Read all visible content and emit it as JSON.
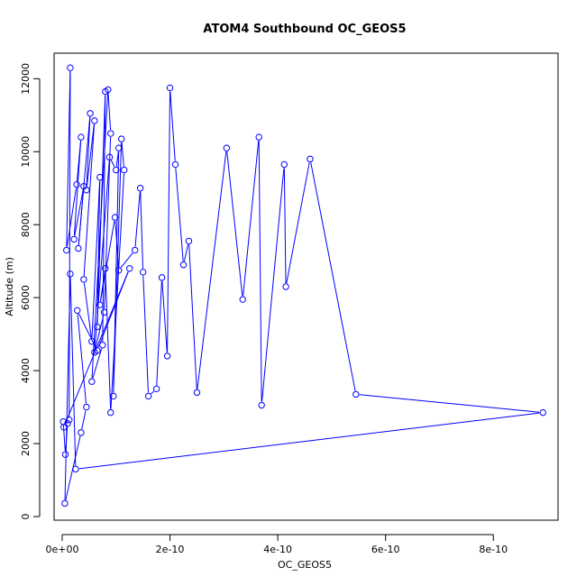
{
  "chart_data": {
    "type": "line",
    "title": "ATOM4 Southbound OC_GEOS5",
    "xlabel": "OC_GEOS5",
    "ylabel": "Altitude (m)",
    "xlim": [
      -1.5e-11,
      9.2e-10
    ],
    "ylim": [
      -100,
      12700
    ],
    "x_ticks": [
      0,
      2e-10,
      4e-10,
      6e-10,
      8e-10
    ],
    "x_tick_labels": [
      "0e+00",
      "2e-10",
      "4e-10",
      "6e-10",
      "8e-10"
    ],
    "y_ticks": [
      0,
      2000,
      4000,
      6000,
      8000,
      10000,
      12000
    ],
    "y_tick_labels": [
      "0",
      "2000",
      "4000",
      "6000",
      "8000",
      "10000",
      "12000"
    ],
    "grid": false,
    "markers": "open-circle",
    "color": "#0000ff",
    "series": [
      {
        "x": [
          2e-12,
          6e-12,
          1e-11,
          1.3e-11,
          1.5e-11,
          8e-12,
          2.7e-11,
          3.5e-11,
          2.2e-11,
          4e-11,
          3e-11,
          5.2e-11,
          4.5e-11,
          6e-11,
          4e-11,
          5.5e-11,
          7e-11,
          6.5e-11,
          8e-11,
          7.5e-11,
          5.5e-11,
          8.5e-11,
          9e-11,
          7.8e-11,
          6e-11,
          8.8e-11,
          1e-10,
          1.05e-10,
          9.5e-11,
          1.1e-10,
          1.15e-10,
          9e-11,
          8e-11,
          7e-11,
          9.8e-11,
          1.05e-10,
          1.35e-10,
          1.45e-10,
          1.5e-10,
          1.6e-10,
          1.75e-10,
          1.85e-10,
          1.95e-10,
          2e-10,
          2.1e-10,
          2.25e-10,
          2.35e-10,
          2.5e-10,
          3.05e-10,
          3.35e-10,
          3.65e-10,
          3.7e-10,
          4.12e-10,
          4.15e-10,
          4.6e-10,
          5.45e-10,
          8.92e-10,
          2.5e-11,
          1.5e-11,
          5e-12,
          3.5e-11,
          4.5e-11,
          2.8e-11,
          6.5e-11,
          1.25e-10,
          3e-12
        ],
        "y": [
          2600,
          1700,
          2550,
          2650,
          12300,
          7300,
          9100,
          10400,
          7600,
          9050,
          7350,
          11050,
          8950,
          10850,
          6500,
          4800,
          9300,
          5200,
          11650,
          4700,
          3700,
          11700,
          10500,
          5600,
          4500,
          9850,
          9500,
          10100,
          3300,
          10350,
          9500,
          2850,
          6800,
          5800,
          8200,
          6750,
          7300,
          9000,
          6700,
          3300,
          3500,
          6550,
          4400,
          11750,
          9650,
          6900,
          7550,
          3400,
          10100,
          5950,
          10400,
          3050,
          9650,
          6300,
          9800,
          3350,
          2850,
          1300,
          6650,
          360,
          2300,
          3000,
          5650,
          4550,
          6800,
          2450
        ]
      }
    ]
  }
}
